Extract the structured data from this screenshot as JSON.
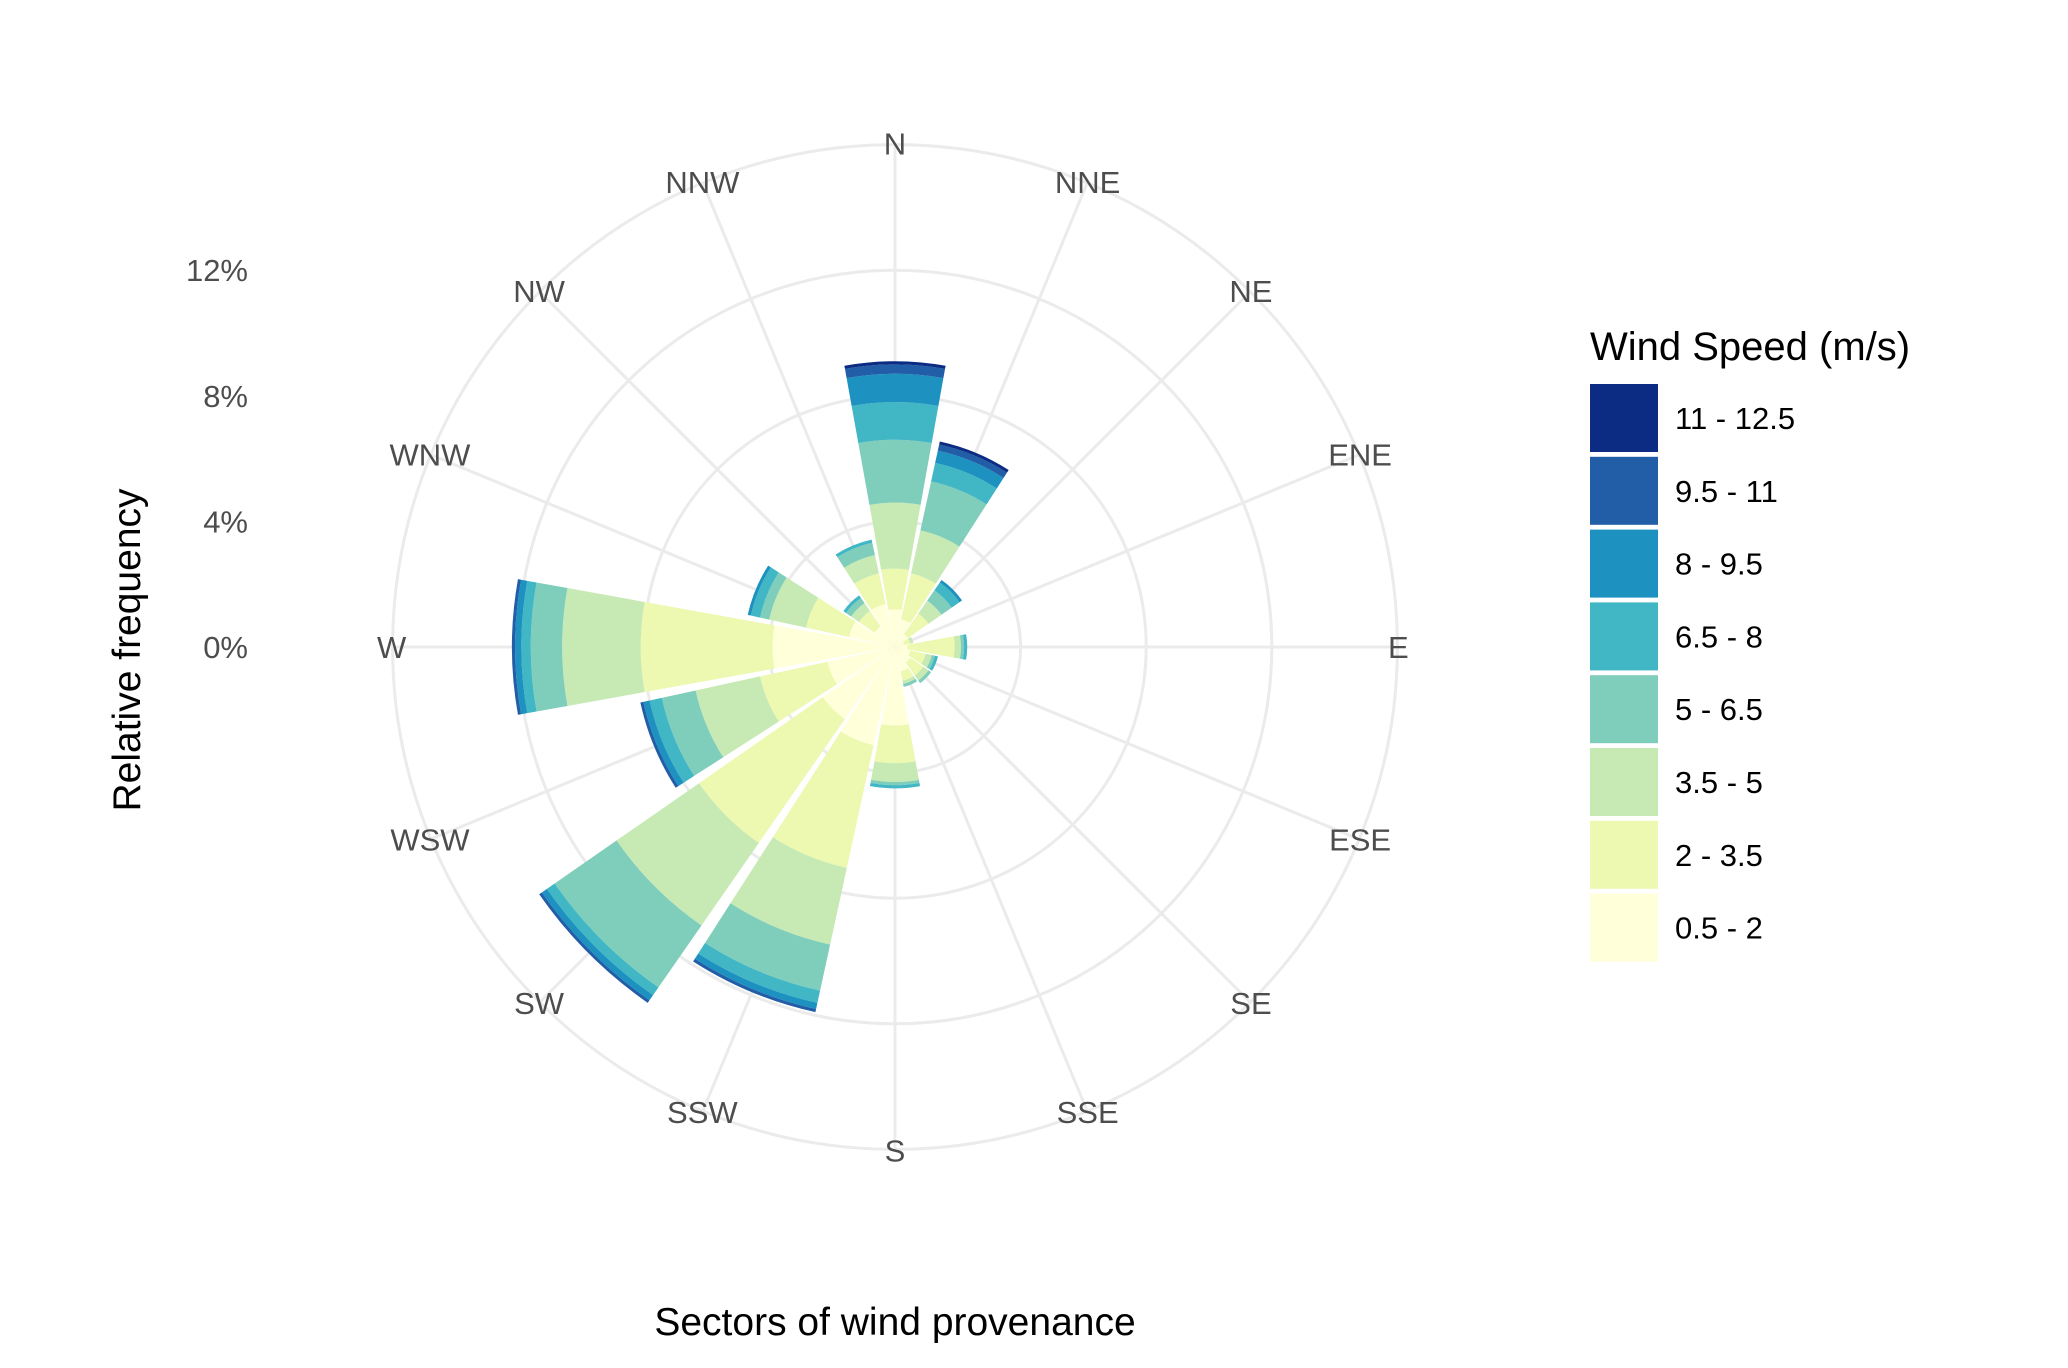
{
  "chart_data": {
    "type": "wind-rose",
    "xlabel": "Sectors of wind provenance",
    "ylabel": "Relative frequency",
    "r_ticks": [
      {
        "value": 0,
        "label": "0%"
      },
      {
        "value": 4,
        "label": "4%"
      },
      {
        "value": 8,
        "label": "8%"
      },
      {
        "value": 12,
        "label": "12%"
      }
    ],
    "r_grid": [
      0,
      4,
      8,
      12,
      16
    ],
    "directions": [
      "N",
      "NNE",
      "NE",
      "ENE",
      "E",
      "ESE",
      "SE",
      "SSE",
      "S",
      "SSW",
      "SW",
      "WSW",
      "W",
      "WNW",
      "NW",
      "NNW"
    ],
    "legend_title": "Wind Speed (m/s)",
    "speed_bins": [
      {
        "label": "0.5 - 2",
        "color": "#ffffd9"
      },
      {
        "label": "2 - 3.5",
        "color": "#edf8b1"
      },
      {
        "label": "3.5 - 5",
        "color": "#c7e9b4"
      },
      {
        "label": "5 - 6.5",
        "color": "#7fcdbb"
      },
      {
        "label": "6.5 - 8",
        "color": "#41b6c4"
      },
      {
        "label": "8 - 9.5",
        "color": "#1d91c0"
      },
      {
        "label": "9.5 - 11",
        "color": "#225ea8"
      },
      {
        "label": "11 - 12.5",
        "color": "#0c2c84"
      }
    ],
    "series": [
      {
        "direction": "N",
        "values": [
          1.2,
          1.3,
          2.1,
          2.0,
          1.2,
          0.9,
          0.3,
          0.1
        ]
      },
      {
        "direction": "NNE",
        "values": [
          0.9,
          1.5,
          1.4,
          1.6,
          0.6,
          0.4,
          0.2,
          0.1
        ]
      },
      {
        "direction": "NE",
        "values": [
          0.5,
          0.8,
          0.5,
          0.4,
          0.3,
          0.1,
          0.0,
          0.0
        ]
      },
      {
        "direction": "ENE",
        "values": [
          0.3,
          0.2,
          0.1,
          0.0,
          0.0,
          0.0,
          0.0,
          0.0
        ]
      },
      {
        "direction": "E",
        "values": [
          0.4,
          1.5,
          0.2,
          0.1,
          0.1,
          0.0,
          0.0,
          0.0
        ]
      },
      {
        "direction": "ESE",
        "values": [
          0.5,
          0.5,
          0.2,
          0.1,
          0.1,
          0.0,
          0.0,
          0.0
        ]
      },
      {
        "direction": "SE",
        "values": [
          0.6,
          0.5,
          0.2,
          0.1,
          0.0,
          0.0,
          0.0,
          0.0
        ]
      },
      {
        "direction": "SSE",
        "values": [
          0.8,
          0.3,
          0.1,
          0.1,
          0.0,
          0.0,
          0.0,
          0.0
        ]
      },
      {
        "direction": "S",
        "values": [
          2.5,
          1.2,
          0.6,
          0.1,
          0.1,
          0.0,
          0.0,
          0.0
        ]
      },
      {
        "direction": "SSW",
        "values": [
          3.2,
          4.0,
          2.5,
          1.5,
          0.4,
          0.2,
          0.1,
          0.0
        ]
      },
      {
        "direction": "SW",
        "values": [
          2.8,
          4.8,
          3.2,
          2.4,
          0.3,
          0.2,
          0.1,
          0.0
        ]
      },
      {
        "direction": "WSW",
        "values": [
          2.2,
          2.2,
          2.1,
          1.1,
          0.4,
          0.2,
          0.1,
          0.0
        ]
      },
      {
        "direction": "W",
        "values": [
          3.9,
          4.2,
          2.5,
          1.0,
          0.3,
          0.2,
          0.1,
          0.0
        ]
      },
      {
        "direction": "WNW",
        "values": [
          1.5,
          1.4,
          1.2,
          0.3,
          0.3,
          0.1,
          0.0,
          0.0
        ]
      },
      {
        "direction": "NW",
        "values": [
          0.8,
          0.6,
          0.3,
          0.2,
          0.1,
          0.0,
          0.0,
          0.0
        ]
      },
      {
        "direction": "NNW",
        "values": [
          1.4,
          1.0,
          0.6,
          0.4,
          0.1,
          0.0,
          0.0,
          0.0
        ]
      }
    ]
  }
}
